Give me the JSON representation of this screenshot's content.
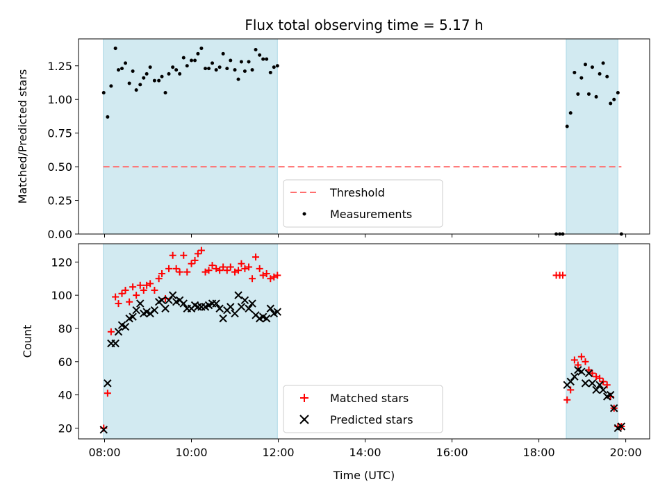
{
  "chart_data": [
    {
      "type": "scatter",
      "title": "Flux total observing time = 5.17 h",
      "xlabel": "",
      "ylabel": "Matched/Predicted stars",
      "xlim": [
        7.4,
        20.55
      ],
      "ylim": [
        0.0,
        1.45
      ],
      "yticks": [
        0.0,
        0.25,
        0.5,
        0.75,
        1.0,
        1.25
      ],
      "ytick_labels": [
        "0.00",
        "0.25",
        "0.50",
        "0.75",
        "1.00",
        "1.25"
      ],
      "shaded_intervals": [
        [
          7.97,
          11.98
        ],
        [
          18.63,
          19.82
        ]
      ],
      "shade_color": "#add8e6",
      "threshold": {
        "name": "Threshold",
        "y": 0.5,
        "x_range": [
          7.97,
          19.9
        ],
        "color": "#ff6f6f"
      },
      "legend": {
        "position": "bottom-center"
      },
      "series": [
        {
          "name": "Measurements",
          "marker": "dot",
          "color": "#000000",
          "points": [
            [
              7.98,
              1.05
            ],
            [
              8.07,
              0.87
            ],
            [
              8.15,
              1.1
            ],
            [
              8.25,
              1.38
            ],
            [
              8.32,
              1.22
            ],
            [
              8.4,
              1.23
            ],
            [
              8.48,
              1.27
            ],
            [
              8.57,
              1.12
            ],
            [
              8.65,
              1.21
            ],
            [
              8.73,
              1.07
            ],
            [
              8.82,
              1.11
            ],
            [
              8.9,
              1.16
            ],
            [
              8.97,
              1.19
            ],
            [
              9.05,
              1.24
            ],
            [
              9.15,
              1.14
            ],
            [
              9.25,
              1.14
            ],
            [
              9.32,
              1.17
            ],
            [
              9.4,
              1.05
            ],
            [
              9.48,
              1.19
            ],
            [
              9.57,
              1.24
            ],
            [
              9.65,
              1.22
            ],
            [
              9.73,
              1.19
            ],
            [
              9.82,
              1.31
            ],
            [
              9.9,
              1.25
            ],
            [
              10.0,
              1.29
            ],
            [
              10.08,
              1.29
            ],
            [
              10.15,
              1.34
            ],
            [
              10.23,
              1.38
            ],
            [
              10.32,
              1.23
            ],
            [
              10.4,
              1.23
            ],
            [
              10.48,
              1.27
            ],
            [
              10.57,
              1.22
            ],
            [
              10.65,
              1.24
            ],
            [
              10.73,
              1.34
            ],
            [
              10.82,
              1.23
            ],
            [
              10.9,
              1.29
            ],
            [
              11.0,
              1.22
            ],
            [
              11.08,
              1.15
            ],
            [
              11.15,
              1.28
            ],
            [
              11.23,
              1.21
            ],
            [
              11.32,
              1.28
            ],
            [
              11.4,
              1.22
            ],
            [
              11.48,
              1.37
            ],
            [
              11.57,
              1.33
            ],
            [
              11.65,
              1.3
            ],
            [
              11.73,
              1.3
            ],
            [
              11.82,
              1.2
            ],
            [
              11.9,
              1.24
            ],
            [
              11.98,
              1.25
            ],
            [
              18.4,
              0.0
            ],
            [
              18.48,
              0.0
            ],
            [
              18.55,
              0.0
            ],
            [
              18.65,
              0.8
            ],
            [
              18.73,
              0.9
            ],
            [
              18.82,
              1.2
            ],
            [
              18.9,
              1.04
            ],
            [
              18.98,
              1.16
            ],
            [
              19.07,
              1.26
            ],
            [
              19.15,
              1.04
            ],
            [
              19.23,
              1.24
            ],
            [
              19.32,
              1.02
            ],
            [
              19.4,
              1.19
            ],
            [
              19.48,
              1.27
            ],
            [
              19.57,
              1.17
            ],
            [
              19.65,
              0.97
            ],
            [
              19.73,
              1.0
            ],
            [
              19.82,
              1.05
            ],
            [
              19.9,
              0.0
            ]
          ]
        }
      ]
    },
    {
      "type": "scatter",
      "title": "",
      "xlabel": "Time (UTC)",
      "ylabel": "Count",
      "xlim": [
        7.4,
        20.55
      ],
      "ylim": [
        13.5,
        131
      ],
      "xticks": [
        8,
        10,
        12,
        14,
        16,
        18,
        20
      ],
      "xtick_labels": [
        "08:00",
        "10:00",
        "12:00",
        "14:00",
        "16:00",
        "18:00",
        "20:00"
      ],
      "yticks": [
        20,
        40,
        60,
        80,
        100,
        120
      ],
      "ytick_labels": [
        "20",
        "40",
        "60",
        "80",
        "100",
        "120"
      ],
      "shaded_intervals": [
        [
          7.97,
          11.98
        ],
        [
          18.63,
          19.82
        ]
      ],
      "shade_color": "#add8e6",
      "legend": {
        "position": "bottom-center"
      },
      "series": [
        {
          "name": "Matched stars",
          "marker": "plus",
          "color": "#ff0000",
          "points": [
            [
              7.98,
              20
            ],
            [
              8.07,
              41
            ],
            [
              8.15,
              78
            ],
            [
              8.25,
              99
            ],
            [
              8.32,
              95
            ],
            [
              8.4,
              101
            ],
            [
              8.48,
              103
            ],
            [
              8.57,
              96
            ],
            [
              8.65,
              105
            ],
            [
              8.73,
              100
            ],
            [
              8.82,
              106
            ],
            [
              8.9,
              103
            ],
            [
              8.97,
              106
            ],
            [
              9.05,
              107
            ],
            [
              9.15,
              103
            ],
            [
              9.25,
              110
            ],
            [
              9.32,
              113
            ],
            [
              9.4,
              98
            ],
            [
              9.48,
              116
            ],
            [
              9.57,
              124
            ],
            [
              9.65,
              116
            ],
            [
              9.73,
              114
            ],
            [
              9.82,
              124
            ],
            [
              9.9,
              114
            ],
            [
              10.0,
              119
            ],
            [
              10.08,
              121
            ],
            [
              10.15,
              125
            ],
            [
              10.23,
              127
            ],
            [
              10.32,
              114
            ],
            [
              10.4,
              115
            ],
            [
              10.48,
              118
            ],
            [
              10.57,
              116
            ],
            [
              10.65,
              115
            ],
            [
              10.73,
              117
            ],
            [
              10.82,
              115
            ],
            [
              10.9,
              117
            ],
            [
              11.0,
              114
            ],
            [
              11.08,
              115
            ],
            [
              11.15,
              119
            ],
            [
              11.23,
              116
            ],
            [
              11.32,
              117
            ],
            [
              11.4,
              110
            ],
            [
              11.48,
              123
            ],
            [
              11.57,
              116
            ],
            [
              11.65,
              112
            ],
            [
              11.73,
              113
            ],
            [
              11.82,
              110
            ],
            [
              11.9,
              111
            ],
            [
              11.98,
              112
            ],
            [
              18.4,
              112
            ],
            [
              18.48,
              112
            ],
            [
              18.55,
              112
            ],
            [
              18.65,
              37
            ],
            [
              18.73,
              43
            ],
            [
              18.82,
              61
            ],
            [
              18.9,
              58
            ],
            [
              18.98,
              63
            ],
            [
              19.07,
              60
            ],
            [
              19.15,
              55
            ],
            [
              19.23,
              53
            ],
            [
              19.32,
              51
            ],
            [
              19.4,
              50
            ],
            [
              19.48,
              48
            ],
            [
              19.57,
              46
            ],
            [
              19.65,
              39
            ],
            [
              19.73,
              32
            ],
            [
              19.82,
              21
            ],
            [
              19.9,
              21
            ]
          ]
        },
        {
          "name": "Predicted stars",
          "marker": "x",
          "color": "#000000",
          "points": [
            [
              7.98,
              19
            ],
            [
              8.07,
              47
            ],
            [
              8.15,
              71
            ],
            [
              8.25,
              71
            ],
            [
              8.32,
              78
            ],
            [
              8.4,
              82
            ],
            [
              8.48,
              81
            ],
            [
              8.57,
              86
            ],
            [
              8.65,
              87
            ],
            [
              8.73,
              91
            ],
            [
              8.82,
              95
            ],
            [
              8.9,
              89
            ],
            [
              8.97,
              90
            ],
            [
              9.05,
              89
            ],
            [
              9.15,
              91
            ],
            [
              9.25,
              96
            ],
            [
              9.32,
              97
            ],
            [
              9.4,
              92
            ],
            [
              9.48,
              97
            ],
            [
              9.57,
              100
            ],
            [
              9.65,
              96
            ],
            [
              9.73,
              97
            ],
            [
              9.82,
              95
            ],
            [
              9.9,
              92
            ],
            [
              10.0,
              92
            ],
            [
              10.08,
              94
            ],
            [
              10.15,
              93
            ],
            [
              10.23,
              93
            ],
            [
              10.32,
              93
            ],
            [
              10.4,
              94
            ],
            [
              10.48,
              95
            ],
            [
              10.57,
              95
            ],
            [
              10.65,
              92
            ],
            [
              10.73,
              86
            ],
            [
              10.82,
              91
            ],
            [
              10.9,
              93
            ],
            [
              11.0,
              89
            ],
            [
              11.08,
              100
            ],
            [
              11.15,
              93
            ],
            [
              11.23,
              97
            ],
            [
              11.32,
              92
            ],
            [
              11.4,
              95
            ],
            [
              11.48,
              88
            ],
            [
              11.57,
              86
            ],
            [
              11.65,
              87
            ],
            [
              11.73,
              86
            ],
            [
              11.82,
              92
            ],
            [
              11.9,
              89
            ],
            [
              11.98,
              90
            ],
            [
              18.65,
              46
            ],
            [
              18.73,
              48
            ],
            [
              18.82,
              51
            ],
            [
              18.9,
              55
            ],
            [
              18.98,
              54
            ],
            [
              19.07,
              47
            ],
            [
              19.15,
              53
            ],
            [
              19.23,
              47
            ],
            [
              19.32,
              43
            ],
            [
              19.4,
              46
            ],
            [
              19.48,
              43
            ],
            [
              19.57,
              39
            ],
            [
              19.65,
              40
            ],
            [
              19.73,
              32
            ],
            [
              19.82,
              20
            ],
            [
              19.9,
              21
            ]
          ]
        }
      ]
    }
  ]
}
